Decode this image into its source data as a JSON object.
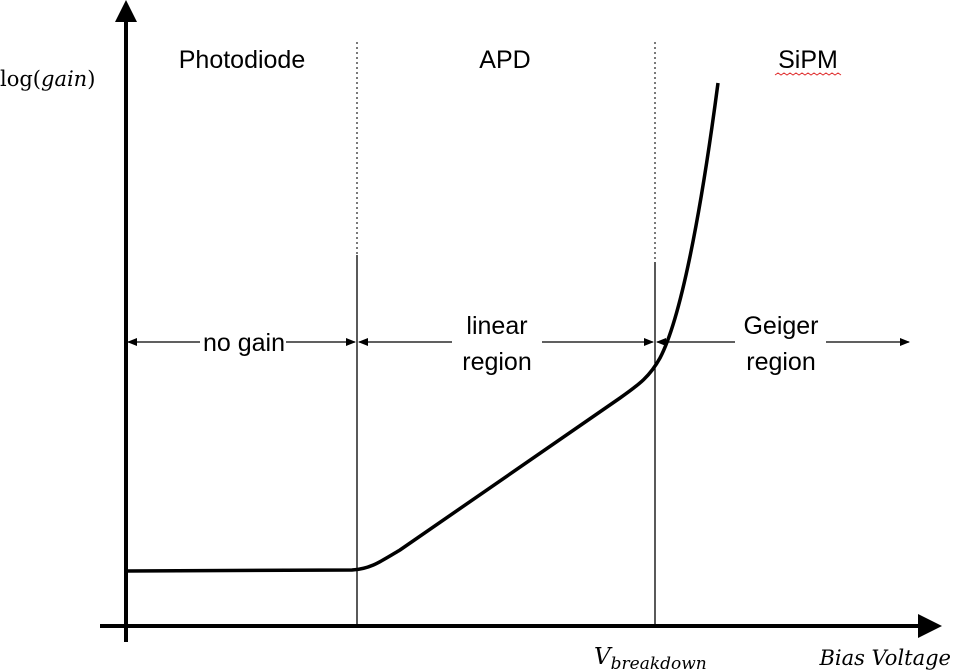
{
  "y_axis_label": {
    "prefix": "log(",
    "var": "gain",
    "suffix": ")"
  },
  "x_axis_label": "Bias Voltage",
  "breakdown_label": {
    "main": "V",
    "sub": "breakdown"
  },
  "regions": [
    {
      "title": "Photodiode",
      "annotation": [
        "no gain"
      ]
    },
    {
      "title": "APD",
      "annotation": [
        "linear",
        "region"
      ]
    },
    {
      "title": "SiPM",
      "annotation": [
        "Geiger",
        "region"
      ]
    }
  ],
  "colors": {
    "line": "#000000",
    "spellcheck_underline": "#e03030"
  }
}
